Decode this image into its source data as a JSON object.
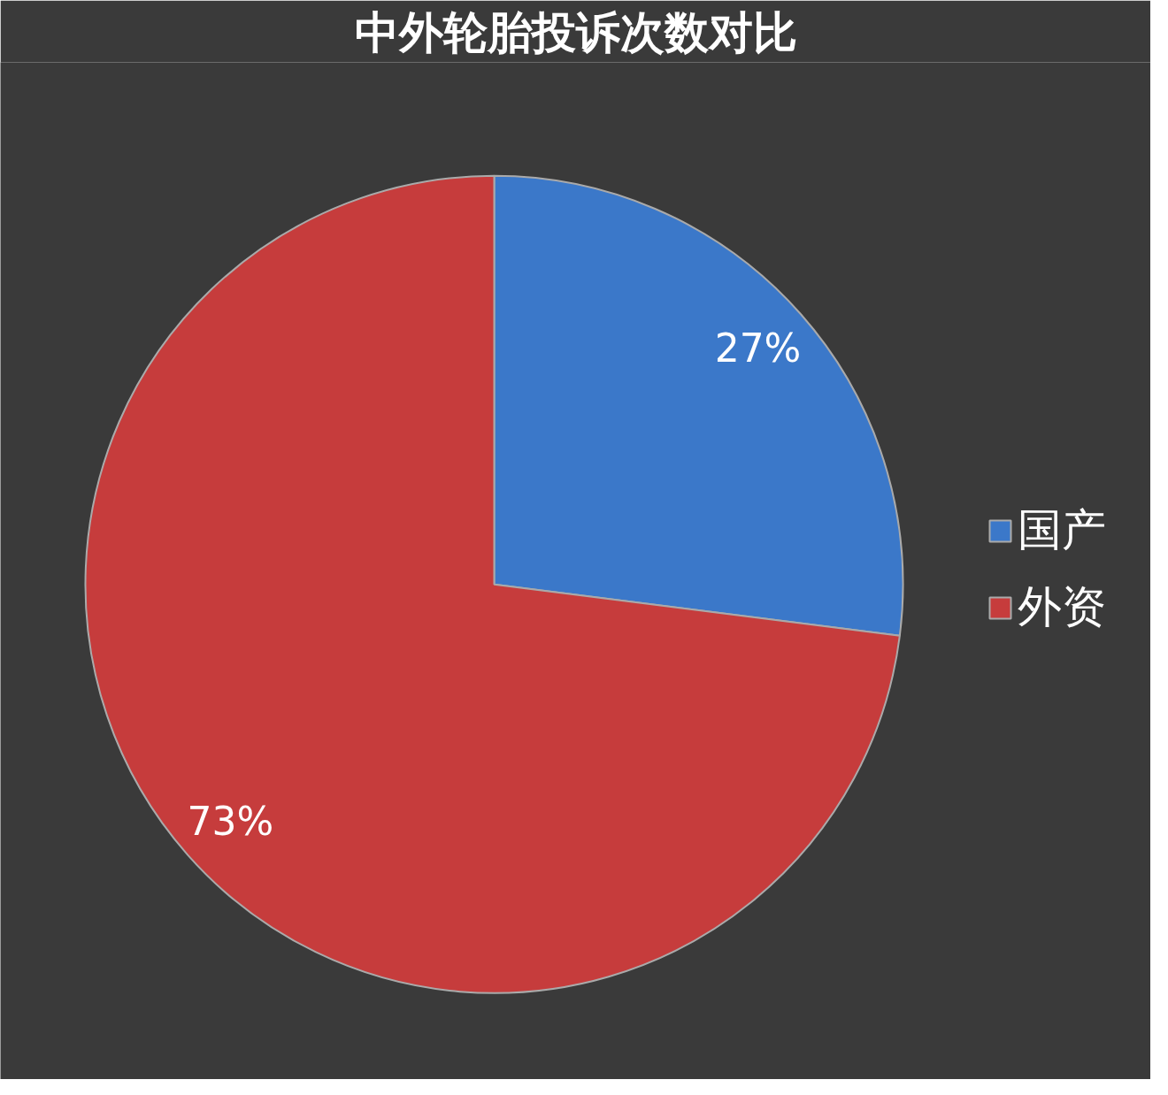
{
  "chart_data": {
    "type": "pie",
    "title": "中外轮胎投诉次数对比",
    "categories": [
      "国产",
      "外资"
    ],
    "values": [
      27,
      73
    ],
    "colors": [
      "#3b78c9",
      "#c63c3c"
    ],
    "value_labels": [
      "27%",
      "73%"
    ],
    "legend": "right"
  }
}
